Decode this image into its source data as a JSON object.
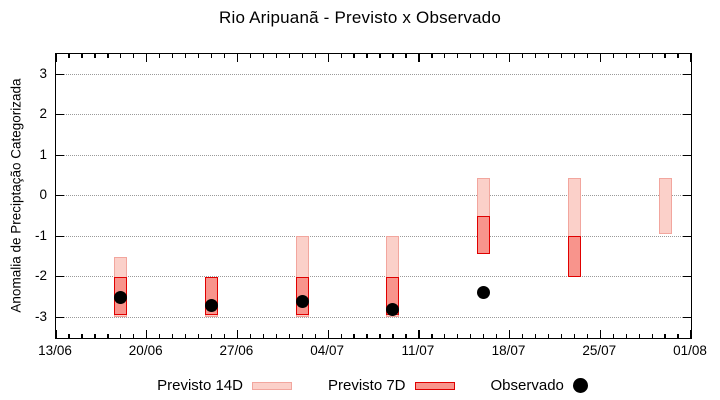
{
  "colors": {
    "pink_fill": "#fbd0c9",
    "pink_border": "#f2a69e",
    "red_fill": "#f8948c",
    "red_border": "#e00000",
    "dot": "#000000",
    "grid": "#9a9a9a"
  },
  "chart_data": {
    "type": "rangebar+scatter",
    "title": "Rio Aripuanã - Previsto x Observado",
    "ylabel": "Anomalia de Preciptação Categorizada",
    "xlabel": "",
    "ylim": [
      -3.5,
      3.5
    ],
    "grid": "horizontal-dotted",
    "x_domain_days": [
      0,
      49
    ],
    "x_ticks": [
      {
        "label": "13/06",
        "day": 0
      },
      {
        "label": "20/06",
        "day": 7
      },
      {
        "label": "27/06",
        "day": 14
      },
      {
        "label": "04/07",
        "day": 21
      },
      {
        "label": "11/07",
        "day": 28
      },
      {
        "label": "18/07",
        "day": 35
      },
      {
        "label": "25/07",
        "day": 42
      },
      {
        "label": "01/08",
        "day": 49
      }
    ],
    "y_ticks": [
      3,
      2,
      1,
      0,
      -1,
      -2,
      -3
    ],
    "legend_position": "bottom-center",
    "series": [
      {
        "name": "Previsto 14D",
        "type": "range",
        "swatch": "s14",
        "points": [
          {
            "date": "18/06",
            "day": 5,
            "top": -1.5,
            "bottom": -3.0
          },
          {
            "date": "25/06",
            "day": 12,
            "top": -2.0,
            "bottom": -3.0
          },
          {
            "date": "02/07",
            "day": 19,
            "top": -1.0,
            "bottom": -3.0
          },
          {
            "date": "09/07",
            "day": 26,
            "top": -1.0,
            "bottom": -3.0
          },
          {
            "date": "16/07",
            "day": 33,
            "top": 0.45,
            "bottom": -1.45
          },
          {
            "date": "23/07",
            "day": 40,
            "top": 0.45,
            "bottom": -2.0
          },
          {
            "date": "30/07",
            "day": 47,
            "top": 0.45,
            "bottom": -0.95
          }
        ]
      },
      {
        "name": "Previsto 7D",
        "type": "range",
        "swatch": "s7",
        "points": [
          {
            "date": "18/06",
            "day": 5,
            "top": -2.0,
            "bottom": -2.95
          },
          {
            "date": "25/06",
            "day": 12,
            "top": -2.0,
            "bottom": -2.95
          },
          {
            "date": "02/07",
            "day": 19,
            "top": -2.0,
            "bottom": -2.95
          },
          {
            "date": "09/07",
            "day": 26,
            "top": -2.0,
            "bottom": -2.95
          },
          {
            "date": "16/07",
            "day": 33,
            "top": -0.5,
            "bottom": -1.45
          },
          {
            "date": "23/07",
            "day": 40,
            "top": -1.0,
            "bottom": -2.0
          }
        ]
      },
      {
        "name": "Observado",
        "type": "scatter",
        "swatch": "dot",
        "points": [
          {
            "date": "18/06",
            "day": 5,
            "value": -2.5
          },
          {
            "date": "25/06",
            "day": 12,
            "value": -2.7
          },
          {
            "date": "02/07",
            "day": 19,
            "value": -2.6
          },
          {
            "date": "09/07",
            "day": 26,
            "value": -2.8
          },
          {
            "date": "16/07",
            "day": 33,
            "value": -2.4
          }
        ]
      }
    ]
  }
}
